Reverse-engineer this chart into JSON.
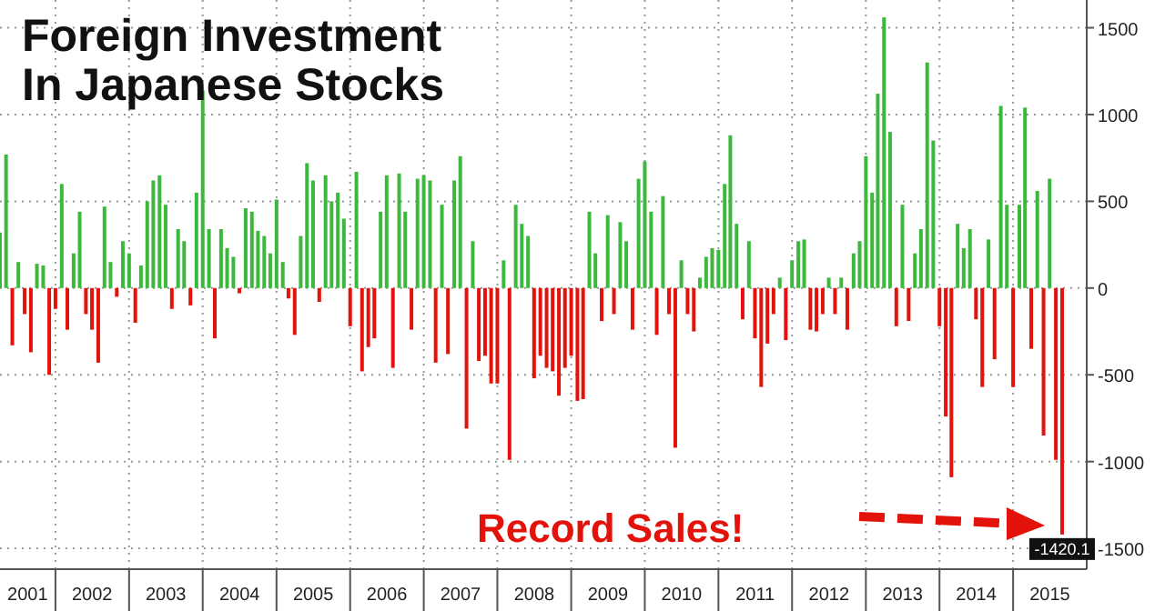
{
  "chart_data": {
    "type": "bar",
    "title": "Foreign Investment\nIn Japanese Stocks",
    "annotations": [
      "Record Sales!"
    ],
    "x": [
      "2001-04",
      "2001-05",
      "2001-06",
      "2001-07",
      "2001-08",
      "2001-09",
      "2001-10",
      "2001-11",
      "2001-12",
      "2002-01",
      "2002-02",
      "2002-03",
      "2002-04",
      "2002-05",
      "2002-06",
      "2002-07",
      "2002-08",
      "2002-09",
      "2002-10",
      "2002-11",
      "2002-12",
      "2003-01",
      "2003-02",
      "2003-03",
      "2003-04",
      "2003-05",
      "2003-06",
      "2003-07",
      "2003-08",
      "2003-09",
      "2003-10",
      "2003-11",
      "2003-12",
      "2004-01",
      "2004-02",
      "2004-03",
      "2004-04",
      "2004-05",
      "2004-06",
      "2004-07",
      "2004-08",
      "2004-09",
      "2004-10",
      "2004-11",
      "2004-12",
      "2005-01",
      "2005-02",
      "2005-03",
      "2005-04",
      "2005-05",
      "2005-06",
      "2005-07",
      "2005-08",
      "2005-09",
      "2005-10",
      "2005-11",
      "2005-12",
      "2006-01",
      "2006-02",
      "2006-03",
      "2006-04",
      "2006-05",
      "2006-06",
      "2006-07",
      "2006-08",
      "2006-09",
      "2006-10",
      "2006-11",
      "2006-12",
      "2007-01",
      "2007-02",
      "2007-03",
      "2007-04",
      "2007-05",
      "2007-06",
      "2007-07",
      "2007-08",
      "2007-09",
      "2007-10",
      "2007-11",
      "2007-12",
      "2008-01",
      "2008-02",
      "2008-03",
      "2008-04",
      "2008-05",
      "2008-06",
      "2008-07",
      "2008-08",
      "2008-09",
      "2008-10",
      "2008-11",
      "2008-12",
      "2009-01",
      "2009-02",
      "2009-03",
      "2009-04",
      "2009-05",
      "2009-06",
      "2009-07",
      "2009-08",
      "2009-09",
      "2009-10",
      "2009-11",
      "2009-12",
      "2010-01",
      "2010-02",
      "2010-03",
      "2010-04",
      "2010-05",
      "2010-06",
      "2010-07",
      "2010-08",
      "2010-09",
      "2010-10",
      "2010-11",
      "2010-12",
      "2011-01",
      "2011-02",
      "2011-03",
      "2011-04",
      "2011-05",
      "2011-06",
      "2011-07",
      "2011-08",
      "2011-09",
      "2011-10",
      "2011-11",
      "2011-12",
      "2012-01",
      "2012-02",
      "2012-03",
      "2012-04",
      "2012-05",
      "2012-06",
      "2012-07",
      "2012-08",
      "2012-09",
      "2012-10",
      "2012-11",
      "2012-12",
      "2013-01",
      "2013-02",
      "2013-03",
      "2013-04",
      "2013-05",
      "2013-06",
      "2013-07",
      "2013-08",
      "2013-09",
      "2013-10",
      "2013-11",
      "2013-12",
      "2014-01",
      "2014-02",
      "2014-03",
      "2014-04",
      "2014-05",
      "2014-06",
      "2014-07",
      "2014-08",
      "2014-09",
      "2014-10",
      "2014-11",
      "2014-12",
      "2015-01",
      "2015-02",
      "2015-03",
      "2015-04",
      "2015-05",
      "2015-06",
      "2015-07",
      "2015-08",
      "2015-09"
    ],
    "values": [
      320,
      770,
      -330,
      150,
      -150,
      -370,
      140,
      130,
      -500,
      -120,
      600,
      -240,
      200,
      440,
      -150,
      -240,
      -430,
      470,
      150,
      -50,
      270,
      200,
      -200,
      130,
      500,
      620,
      650,
      480,
      -120,
      340,
      270,
      -100,
      550,
      1140,
      340,
      -290,
      340,
      230,
      180,
      -30,
      460,
      440,
      330,
      300,
      200,
      510,
      150,
      -60,
      -270,
      300,
      720,
      620,
      -80,
      650,
      500,
      550,
      400,
      -220,
      670,
      -480,
      -340,
      -290,
      440,
      650,
      -460,
      660,
      440,
      -240,
      630,
      650,
      620,
      -430,
      480,
      -380,
      620,
      760,
      -810,
      270,
      -420,
      -390,
      -550,
      -550,
      160,
      -990,
      480,
      370,
      300,
      -520,
      -390,
      -460,
      -480,
      -620,
      -460,
      -390,
      -650,
      -640,
      440,
      200,
      -190,
      420,
      -150,
      380,
      270,
      -240,
      630,
      730,
      440,
      -270,
      530,
      -150,
      -920,
      160,
      -150,
      -250,
      60,
      180,
      230,
      220,
      600,
      880,
      370,
      -180,
      270,
      -290,
      -570,
      -320,
      -150,
      60,
      -300,
      160,
      270,
      280,
      -240,
      -250,
      -150,
      60,
      -150,
      60,
      -240,
      200,
      270,
      760,
      550,
      1120,
      1560,
      900,
      -220,
      480,
      -190,
      200,
      340,
      1300,
      850,
      -220,
      -740,
      -1090,
      370,
      230,
      340,
      -180,
      -570,
      280,
      -410,
      1050,
      480,
      -570,
      480,
      1040,
      -350,
      560,
      -850,
      630,
      -990,
      -1420.1
    ],
    "value_labels": [
      null,
      null,
      null,
      null,
      null,
      null,
      null,
      null,
      null,
      null,
      null,
      null,
      null,
      null,
      null,
      null,
      null,
      null,
      null,
      null,
      null,
      null,
      null,
      null,
      null,
      null,
      null,
      null,
      null,
      null,
      null,
      null,
      null,
      null,
      null,
      null,
      null,
      null,
      null,
      null,
      null,
      null,
      null,
      null,
      null,
      null,
      null,
      null,
      null,
      null,
      null,
      null,
      null,
      null,
      null,
      null,
      null,
      null,
      null,
      null,
      null,
      null,
      null,
      null,
      null,
      null,
      null,
      null,
      null,
      null,
      null,
      null,
      null,
      null,
      null,
      null,
      null,
      null,
      null,
      null,
      null,
      null,
      null,
      null,
      null,
      null,
      null,
      null,
      null,
      null,
      null,
      null,
      null,
      null,
      null,
      null,
      null,
      null,
      null,
      null,
      null,
      null,
      null,
      null,
      null,
      null,
      null,
      null,
      null,
      null,
      null,
      null,
      null,
      null,
      null,
      null,
      null,
      null,
      null,
      null,
      null,
      null,
      null,
      null,
      null,
      null,
      null,
      null,
      null,
      null,
      null,
      null,
      null,
      null,
      null,
      null,
      null,
      null,
      null,
      null,
      null,
      null,
      null,
      null,
      null,
      null,
      null,
      null,
      null,
      null,
      null,
      null,
      null,
      null,
      null,
      null,
      null,
      null,
      null,
      null,
      null,
      null,
      null,
      null,
      null,
      null,
      null,
      null,
      null,
      null,
      null,
      null,
      null,
      "-1420.1"
    ],
    "colors": [
      "#3cb93c",
      "#3cb93c",
      "#e3120b",
      "#3cb93c",
      "#e3120b",
      "#e3120b",
      "#3cb93c",
      "#3cb93c",
      "#e3120b",
      "#e3120b",
      "#3cb93c",
      "#e3120b",
      "#3cb93c",
      "#3cb93c",
      "#e3120b",
      "#e3120b",
      "#e3120b",
      "#3cb93c",
      "#3cb93c",
      "#e3120b",
      "#3cb93c",
      "#3cb93c",
      "#e3120b",
      "#3cb93c",
      "#3cb93c",
      "#3cb93c",
      "#3cb93c",
      "#3cb93c",
      "#e3120b",
      "#3cb93c",
      "#3cb93c",
      "#e3120b",
      "#3cb93c",
      "#3cb93c",
      "#3cb93c",
      "#e3120b",
      "#3cb93c",
      "#3cb93c",
      "#3cb93c",
      "#e3120b",
      "#3cb93c",
      "#3cb93c",
      "#3cb93c",
      "#3cb93c",
      "#3cb93c",
      "#3cb93c",
      "#3cb93c",
      "#e3120b",
      "#e3120b",
      "#3cb93c",
      "#3cb93c",
      "#3cb93c",
      "#e3120b",
      "#3cb93c",
      "#3cb93c",
      "#3cb93c",
      "#3cb93c",
      "#e3120b",
      "#3cb93c",
      "#e3120b",
      "#e3120b",
      "#e3120b",
      "#3cb93c",
      "#3cb93c",
      "#e3120b",
      "#3cb93c",
      "#3cb93c",
      "#e3120b",
      "#3cb93c",
      "#3cb93c",
      "#3cb93c",
      "#e3120b",
      "#3cb93c",
      "#e3120b",
      "#3cb93c",
      "#3cb93c",
      "#e3120b",
      "#3cb93c",
      "#e3120b",
      "#e3120b",
      "#e3120b",
      "#e3120b",
      "#3cb93c",
      "#e3120b",
      "#3cb93c",
      "#3cb93c",
      "#3cb93c",
      "#e3120b",
      "#e3120b",
      "#e3120b",
      "#e3120b",
      "#e3120b",
      "#e3120b",
      "#e3120b",
      "#e3120b",
      "#e3120b",
      "#3cb93c",
      "#3cb93c",
      "#e3120b",
      "#3cb93c",
      "#e3120b",
      "#3cb93c",
      "#3cb93c",
      "#e3120b",
      "#3cb93c",
      "#3cb93c",
      "#3cb93c",
      "#e3120b",
      "#3cb93c",
      "#e3120b",
      "#e3120b",
      "#3cb93c",
      "#e3120b",
      "#e3120b",
      "#3cb93c",
      "#3cb93c",
      "#3cb93c",
      "#3cb93c",
      "#3cb93c",
      "#3cb93c",
      "#3cb93c",
      "#e3120b",
      "#3cb93c",
      "#e3120b",
      "#e3120b",
      "#e3120b",
      "#e3120b",
      "#3cb93c",
      "#e3120b",
      "#3cb93c",
      "#3cb93c",
      "#3cb93c",
      "#e3120b",
      "#e3120b",
      "#e3120b",
      "#3cb93c",
      "#e3120b",
      "#3cb93c",
      "#e3120b",
      "#3cb93c",
      "#3cb93c",
      "#3cb93c",
      "#3cb93c",
      "#3cb93c",
      "#3cb93c",
      "#3cb93c",
      "#e3120b",
      "#3cb93c",
      "#e3120b",
      "#3cb93c",
      "#3cb93c",
      "#3cb93c",
      "#3cb93c",
      "#e3120b",
      "#e3120b",
      "#e3120b",
      "#3cb93c",
      "#3cb93c",
      "#3cb93c",
      "#e3120b",
      "#e3120b",
      "#3cb93c",
      "#e3120b",
      "#3cb93c",
      "#3cb93c",
      "#e3120b",
      "#3cb93c",
      "#3cb93c",
      "#e3120b",
      "#3cb93c",
      "#e3120b",
      "#3cb93c",
      "#e3120b",
      "#e3120b"
    ],
    "xlim": [
      "2001-04",
      "2016-01"
    ],
    "xticks": [
      {
        "value": "2001-08-16",
        "label": "2001"
      },
      {
        "value": "2002-01-01",
        "label": null
      },
      {
        "value": "2002-07-02",
        "label": "2002"
      },
      {
        "value": "2003-01-01",
        "label": null
      },
      {
        "value": "2003-07-02",
        "label": "2003"
      },
      {
        "value": "2004-01-01",
        "label": null
      },
      {
        "value": "2004-07-02",
        "label": "2004"
      },
      {
        "value": "2005-01-01",
        "label": null
      },
      {
        "value": "2005-07-02",
        "label": "2005"
      },
      {
        "value": "2006-01-01",
        "label": null
      },
      {
        "value": "2006-07-02",
        "label": "2006"
      },
      {
        "value": "2007-01-01",
        "label": null
      },
      {
        "value": "2007-07-02",
        "label": "2007"
      },
      {
        "value": "2008-01-01",
        "label": null
      },
      {
        "value": "2008-07-02",
        "label": "2008"
      },
      {
        "value": "2009-01-01",
        "label": null
      },
      {
        "value": "2009-07-02",
        "label": "2009"
      },
      {
        "value": "2010-01-01",
        "label": null
      },
      {
        "value": "2010-07-02",
        "label": "2010"
      },
      {
        "value": "2011-01-01",
        "label": null
      },
      {
        "value": "2011-07-02",
        "label": "2011"
      },
      {
        "value": "2012-01-01",
        "label": null
      },
      {
        "value": "2012-07-02",
        "label": "2012"
      },
      {
        "value": "2013-01-01",
        "label": null
      },
      {
        "value": "2013-07-02",
        "label": "2013"
      },
      {
        "value": "2014-01-01",
        "label": null
      },
      {
        "value": "2014-07-02",
        "label": "2014"
      },
      {
        "value": "2015-01-01",
        "label": null
      },
      {
        "value": "2015-07-02",
        "label": "2015"
      }
    ],
    "ylim": [
      -1620,
      1660
    ],
    "yticks": [
      -1500,
      -1000,
      -500,
      0,
      500,
      1000,
      1500
    ],
    "grid": true
  }
}
